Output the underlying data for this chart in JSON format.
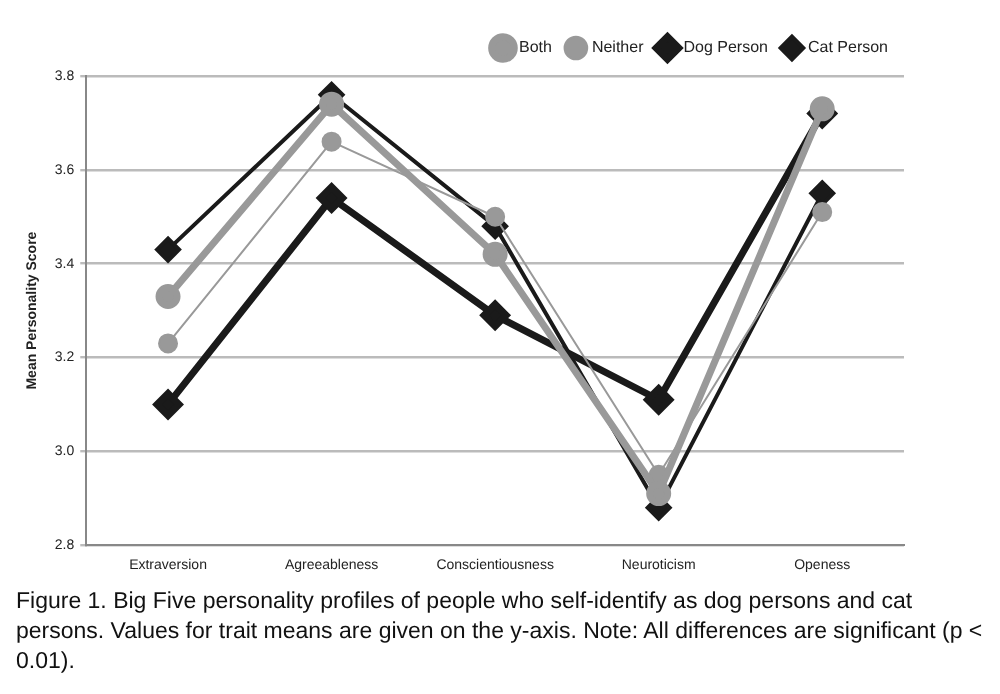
{
  "chart_data": {
    "type": "line",
    "ylabel": "Mean Personality Score",
    "categories": [
      "Extraversion",
      "Agreeableness",
      "Conscientiousness",
      "Neuroticism",
      "Openess"
    ],
    "series": [
      {
        "name": "Cat Person",
        "color": "#1a1a1a",
        "marker": "diamond",
        "values": [
          3.43,
          3.76,
          3.48,
          2.88,
          3.55
        ]
      },
      {
        "name": "Dog Person",
        "color": "#1a1a1a",
        "marker": "diamond",
        "values": [
          3.1,
          3.54,
          3.29,
          3.11,
          3.72
        ]
      },
      {
        "name": "Neither",
        "color": "#999999",
        "marker": "circle",
        "values": [
          3.23,
          3.66,
          3.5,
          2.95,
          3.51
        ]
      },
      {
        "name": "Both",
        "color": "#999999",
        "marker": "circle",
        "values": [
          3.33,
          3.74,
          3.42,
          2.91,
          3.73
        ]
      }
    ],
    "ylim": [
      2.8,
      3.8
    ],
    "yticks": [
      2.8,
      {
        "value": 3,
        "label": "3.0"
      },
      3.2,
      3.4,
      3.6,
      3.8
    ],
    "grid": "y",
    "legend": "top right",
    "annotations": [
      "Figure 1. Big Five personality profiles of people who self-identify as dog persons and cat persons. Values for trait means are given on the y-axis. Note: All differences are significant (p < 0.01)."
    ]
  }
}
